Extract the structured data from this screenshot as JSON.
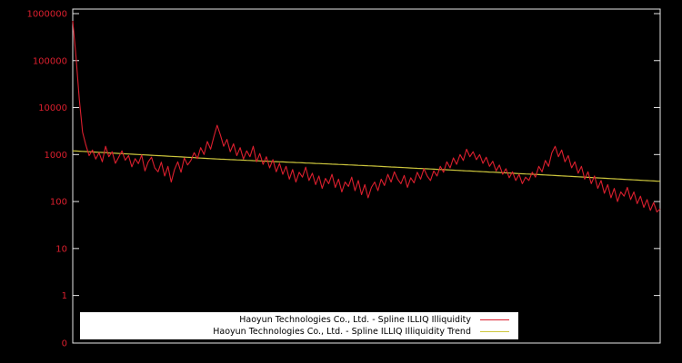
{
  "window": {
    "background": "#000000"
  },
  "legend": {
    "items": [
      {
        "label": "Haoyun Technologies Co., Ltd. - Spline ILLIQ Illiquidity",
        "color": "#dc1f2e"
      },
      {
        "label": "Haoyun Technologies Co., Ltd. - Spline ILLIQ Illiquidity Trend",
        "color": "#cdc63d"
      }
    ]
  },
  "chart_data": {
    "type": "line",
    "title": "",
    "xlabel": "",
    "ylabel": "",
    "y_scale": "log",
    "grid": false,
    "legend_position": "bottom-center",
    "background": "#000000",
    "axis_color": "#e6e6e6",
    "tick_label_color": "#dc1f2e",
    "y_ticks": [
      {
        "label": "1000000",
        "value": 1000000
      },
      {
        "label": "100000",
        "value": 100000
      },
      {
        "label": "10000",
        "value": 10000
      },
      {
        "label": "1000",
        "value": 1000
      },
      {
        "label": "100",
        "value": 100
      },
      {
        "label": "10",
        "value": 10
      },
      {
        "label": "1",
        "value": 1
      },
      {
        "label": "0",
        "value": 0.1
      }
    ],
    "x_count": 180,
    "series": [
      {
        "name": "Haoyun Technologies Co., Ltd. - Spline ILLIQ Illiquidity",
        "color": "#dc1f2e",
        "values": [
          700000,
          120000,
          15000,
          3000,
          1600,
          950,
          1250,
          800,
          1100,
          700,
          1500,
          900,
          1150,
          650,
          880,
          1200,
          760,
          950,
          550,
          820,
          640,
          980,
          450,
          700,
          880,
          520,
          430,
          690,
          350,
          560,
          260,
          480,
          700,
          420,
          850,
          600,
          750,
          1100,
          820,
          1400,
          1000,
          1900,
          1300,
          2400,
          4200,
          2600,
          1500,
          2100,
          1150,
          1700,
          950,
          1400,
          800,
          1200,
          900,
          1500,
          700,
          1050,
          620,
          900,
          520,
          780,
          430,
          650,
          380,
          560,
          300,
          480,
          260,
          420,
          330,
          540,
          280,
          400,
          230,
          350,
          190,
          310,
          240,
          380,
          200,
          300,
          160,
          260,
          210,
          330,
          170,
          280,
          140,
          230,
          120,
          200,
          260,
          170,
          300,
          220,
          380,
          260,
          430,
          300,
          240,
          360,
          200,
          320,
          250,
          420,
          300,
          500,
          350,
          280,
          450,
          350,
          560,
          420,
          700,
          520,
          850,
          620,
          1000,
          750,
          1300,
          900,
          1150,
          780,
          1000,
          650,
          880,
          560,
          720,
          450,
          600,
          380,
          500,
          320,
          430,
          280,
          380,
          240,
          330,
          280,
          420,
          330,
          560,
          430,
          750,
          560,
          1100,
          1500,
          900,
          1250,
          700,
          950,
          520,
          700,
          400,
          560,
          300,
          430,
          240,
          350,
          190,
          280,
          150,
          230,
          120,
          190,
          100,
          160,
          130,
          200,
          110,
          160,
          90,
          130,
          75,
          110,
          65,
          95,
          60,
          70
        ]
      },
      {
        "name": "Haoyun Technologies Co., Ltd. - Spline ILLIQ Illiquidity Trend",
        "color": "#cdc63d",
        "trend_control_points": [
          {
            "u": 0.0,
            "v": 1200
          },
          {
            "u": 0.25,
            "v": 800
          },
          {
            "u": 0.5,
            "v": 580
          },
          {
            "u": 0.75,
            "v": 400
          },
          {
            "u": 1.0,
            "v": 270
          }
        ]
      }
    ]
  }
}
